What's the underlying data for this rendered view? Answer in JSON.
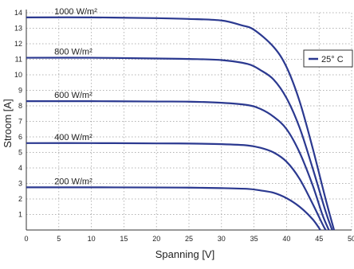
{
  "chart_data": {
    "type": "line",
    "title": "",
    "xlabel": "Spanning [V]",
    "ylabel": "Stroom [A]",
    "xlim": [
      0,
      50
    ],
    "ylim": [
      0,
      14
    ],
    "xticks": [
      0,
      5,
      10,
      15,
      20,
      25,
      30,
      35,
      40,
      45,
      50
    ],
    "yticks": [
      1,
      2,
      3,
      4,
      5,
      6,
      7,
      8,
      9,
      10,
      11,
      12,
      13,
      14
    ],
    "grid": true,
    "grid_style": "dotted",
    "legend": {
      "position": "right",
      "label": "25° C",
      "color": "#2b3990"
    },
    "line_color": "#2b3990",
    "series": [
      {
        "name": "1000 W/m²",
        "values": [
          [
            0,
            13.7
          ],
          [
            10,
            13.7
          ],
          [
            20,
            13.65
          ],
          [
            25,
            13.6
          ],
          [
            30,
            13.5
          ],
          [
            33,
            13.2
          ],
          [
            35,
            12.9
          ],
          [
            38,
            11.8
          ],
          [
            40,
            10.5
          ],
          [
            42,
            8.3
          ],
          [
            44,
            5.3
          ],
          [
            46,
            2.0
          ],
          [
            47.3,
            0
          ]
        ]
      },
      {
        "name": "800 W/m²",
        "values": [
          [
            0,
            11.1
          ],
          [
            10,
            11.1
          ],
          [
            20,
            11.05
          ],
          [
            25,
            11.02
          ],
          [
            30,
            10.95
          ],
          [
            34,
            10.7
          ],
          [
            36,
            10.3
          ],
          [
            38,
            9.7
          ],
          [
            40,
            8.5
          ],
          [
            42,
            6.6
          ],
          [
            44,
            4.0
          ],
          [
            46,
            1.2
          ],
          [
            47.0,
            0
          ]
        ]
      },
      {
        "name": "600 W/m²",
        "values": [
          [
            0,
            8.3
          ],
          [
            10,
            8.3
          ],
          [
            20,
            8.28
          ],
          [
            25,
            8.27
          ],
          [
            30,
            8.2
          ],
          [
            34,
            8.05
          ],
          [
            36,
            7.8
          ],
          [
            38,
            7.3
          ],
          [
            40,
            6.5
          ],
          [
            42,
            5.0
          ],
          [
            44,
            2.9
          ],
          [
            45.5,
            1.0
          ],
          [
            46.5,
            0
          ]
        ]
      },
      {
        "name": "400 W/m²",
        "values": [
          [
            0,
            5.6
          ],
          [
            10,
            5.6
          ],
          [
            20,
            5.58
          ],
          [
            25,
            5.57
          ],
          [
            30,
            5.53
          ],
          [
            34,
            5.45
          ],
          [
            36,
            5.3
          ],
          [
            38,
            5.0
          ],
          [
            40,
            4.4
          ],
          [
            42,
            3.3
          ],
          [
            44,
            1.7
          ],
          [
            45.5,
            0.4
          ],
          [
            46.0,
            0
          ]
        ]
      },
      {
        "name": "200 W/m²",
        "values": [
          [
            0,
            2.75
          ],
          [
            10,
            2.75
          ],
          [
            20,
            2.74
          ],
          [
            25,
            2.73
          ],
          [
            30,
            2.7
          ],
          [
            34,
            2.65
          ],
          [
            36,
            2.55
          ],
          [
            38,
            2.4
          ],
          [
            40,
            2.05
          ],
          [
            42,
            1.5
          ],
          [
            44,
            0.7
          ],
          [
            45.2,
            0
          ]
        ]
      }
    ]
  }
}
